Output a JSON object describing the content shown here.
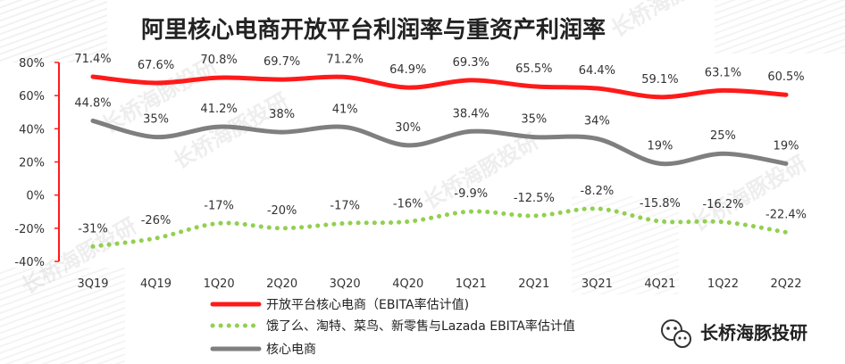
{
  "chart_data": {
    "type": "line",
    "title": "阿里核心电商开放平台利润率与重资产利润率",
    "categories": [
      "3Q19",
      "4Q19",
      "1Q20",
      "2Q20",
      "3Q20",
      "4Q20",
      "1Q21",
      "2Q21",
      "3Q21",
      "4Q21",
      "1Q22",
      "2Q22"
    ],
    "ylim": [
      -40,
      80
    ],
    "yticks": [
      -40,
      -20,
      0,
      20,
      40,
      60,
      80
    ],
    "ytick_labels": [
      "-40%",
      "-20%",
      "0%",
      "20%",
      "40%",
      "60%",
      "80%"
    ],
    "grid": false,
    "legend_position": "bottom",
    "series": [
      {
        "name": "开放平台核心电商（EBITA率估计值)",
        "color": "#ff1a1a",
        "style": "solid",
        "values": [
          71.4,
          67.6,
          70.8,
          69.7,
          71.2,
          64.9,
          69.3,
          65.5,
          64.4,
          59.1,
          63.1,
          60.5
        ],
        "labels": [
          "71.4%",
          "67.6%",
          "70.8%",
          "69.7%",
          "71.2%",
          "64.9%",
          "69.3%",
          "65.5%",
          "64.4%",
          "59.1%",
          "63.1%",
          "60.5%"
        ]
      },
      {
        "name": "饿了么、淘特、菜鸟、新零售与Lazada EBITA率估计值",
        "color": "#92d050",
        "style": "dotted",
        "values": [
          -31,
          -26,
          -17,
          -20,
          -17,
          -16,
          -9.9,
          -12.5,
          -8.2,
          -15.8,
          -16.2,
          -22.4
        ],
        "labels": [
          "-31%",
          "-26%",
          "-17%",
          "-20%",
          "-17%",
          "-16%",
          "-9.9%",
          "-12.5%",
          "-8.2%",
          "-15.8%",
          "-16.2%",
          "-22.4%"
        ]
      },
      {
        "name": "核心电商",
        "color": "#7f7f7f",
        "style": "solid",
        "values": [
          44.8,
          35,
          41.2,
          38,
          41,
          30,
          38.4,
          35,
          34,
          19,
          25,
          19
        ],
        "labels": [
          "44.8%",
          "35%",
          "41.2%",
          "38%",
          "41%",
          "30%",
          "38.4%",
          "35%",
          "34%",
          "19%",
          "25%",
          "19%"
        ]
      }
    ]
  },
  "watermark": "长桥海豚投研",
  "brand": {
    "icon": "wechat-icon",
    "text": "长桥海豚投研"
  }
}
